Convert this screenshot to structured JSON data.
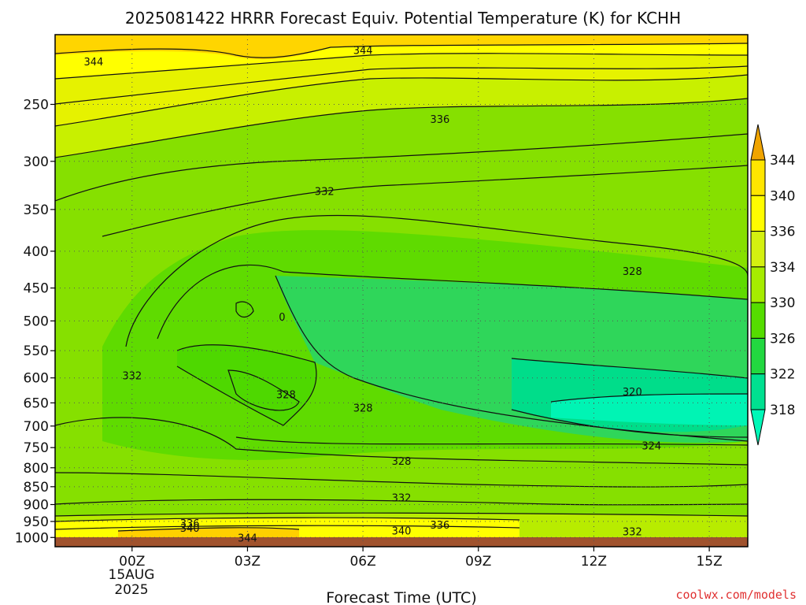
{
  "chart_data": {
    "type": "heatmap",
    "title": "2025081422 HRRR Forecast Equiv. Potential Temperature (K) for KCHH",
    "xlabel": "Forecast Time (UTC)",
    "ylabel": "",
    "credit": "coolwx.com/models",
    "x_ticks": [
      "00Z",
      "03Z",
      "06Z",
      "09Z",
      "12Z",
      "15Z"
    ],
    "x_date": [
      "15AUG",
      "2025"
    ],
    "y_ticks": [
      250,
      300,
      350,
      400,
      450,
      500,
      550,
      600,
      650,
      700,
      750,
      800,
      850,
      900,
      950,
      1000
    ],
    "y_scale": "log pressure (hPa), inverted",
    "x_range_hours_from_00Z": [
      -2,
      16
    ],
    "y_range_hPa": [
      1030,
      200
    ],
    "grid": true,
    "colorbar": {
      "labels": [
        344,
        340,
        336,
        334,
        330,
        326,
        322,
        318
      ],
      "colors": [
        "#f0a400",
        "#ffe600",
        "#fffc00",
        "#d4f010",
        "#a6ec00",
        "#55dd00",
        "#22d840",
        "#00e090",
        "#00f8b8"
      ]
    },
    "contour_labels": [
      {
        "text": "344",
        "x": -1.0,
        "y": 218
      },
      {
        "text": "344",
        "x": 6.0,
        "y": 210
      },
      {
        "text": "336",
        "x": 8.0,
        "y": 262
      },
      {
        "text": "332",
        "x": 5.0,
        "y": 330
      },
      {
        "text": "328",
        "x": 13.0,
        "y": 426
      },
      {
        "text": "0",
        "x": 3.9,
        "y": 493
      },
      {
        "text": "332",
        "x": 0.0,
        "y": 595
      },
      {
        "text": "328",
        "x": 4.0,
        "y": 632
      },
      {
        "text": "328",
        "x": 6.0,
        "y": 660
      },
      {
        "text": "320",
        "x": 13.0,
        "y": 627
      },
      {
        "text": "324",
        "x": 13.5,
        "y": 745
      },
      {
        "text": "328",
        "x": 7.0,
        "y": 782
      },
      {
        "text": "332",
        "x": 7.0,
        "y": 880
      },
      {
        "text": "336",
        "x": 1.5,
        "y": 955
      },
      {
        "text": "340",
        "x": 1.5,
        "y": 970
      },
      {
        "text": "336",
        "x": 8.0,
        "y": 960
      },
      {
        "text": "340",
        "x": 7.0,
        "y": 978
      },
      {
        "text": "344",
        "x": 3.0,
        "y": 1000
      },
      {
        "text": "332",
        "x": 13.0,
        "y": 980
      }
    ]
  }
}
